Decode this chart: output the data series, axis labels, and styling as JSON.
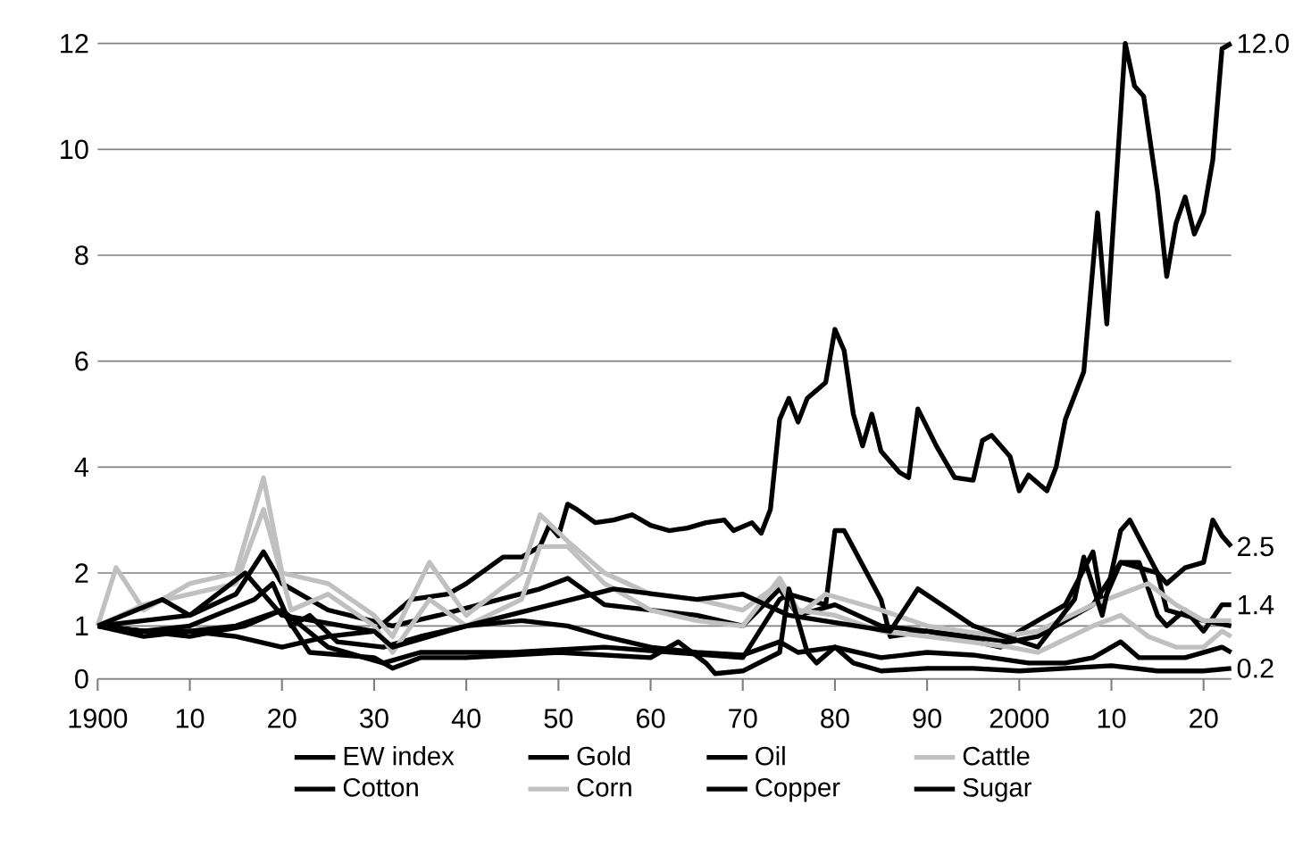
{
  "chart_data": {
    "type": "line",
    "xlim": [
      1900,
      2023
    ],
    "ylim": [
      0,
      12
    ],
    "xticks": [
      1900,
      {
        "value": 1910,
        "label": "10"
      },
      {
        "value": 1920,
        "label": "20"
      },
      {
        "value": 1930,
        "label": "30"
      },
      {
        "value": 1940,
        "label": "40"
      },
      {
        "value": 1950,
        "label": "50"
      },
      {
        "value": 1960,
        "label": "60"
      },
      {
        "value": 1970,
        "label": "70"
      },
      {
        "value": 1980,
        "label": "80"
      },
      {
        "value": 1990,
        "label": "90"
      },
      2000,
      {
        "value": 2010,
        "label": "10"
      },
      {
        "value": 2020,
        "label": "20"
      }
    ],
    "yticks": [
      0,
      1,
      2,
      4,
      6,
      8,
      10,
      12
    ],
    "grid": "y",
    "legend": "bottom",
    "marker": "none",
    "line_style": "solid",
    "series": [
      {
        "name": "EW index",
        "color": "#000000",
        "x": [
          1900,
          1905,
          1910,
          1915,
          1918,
          1920,
          1925,
          1932,
          1937,
          1948,
          1951,
          1955,
          1965,
          1970,
          1974,
          1976,
          1980,
          1985,
          1990,
          1999,
          2002,
          2008,
          2011,
          2015,
          2016,
          2020,
          2023
        ],
        "values": [
          1,
          1.1,
          1.2,
          1.6,
          2.4,
          1.8,
          1.3,
          1.0,
          1.2,
          1.7,
          1.9,
          1.4,
          1.2,
          1.0,
          1.7,
          1.2,
          1.4,
          1.0,
          0.9,
          0.7,
          0.8,
          1.4,
          2.2,
          2.0,
          1.3,
          1.1,
          1.0
        ]
      },
      {
        "name": "Gold",
        "color": "#000000",
        "x": [
          1900,
          1905,
          1910,
          1915,
          1920,
          1925,
          1930,
          1934,
          1938,
          1940,
          1944,
          1946,
          1948,
          1949,
          1950,
          1951,
          1952,
          1954,
          1956,
          1958,
          1960,
          1962,
          1964,
          1966,
          1968,
          1969,
          1971,
          1972,
          1973,
          1974,
          1975,
          1976,
          1977,
          1979,
          1980,
          1981,
          1982,
          1983,
          1984,
          1985,
          1987,
          1988,
          1989,
          1991,
          1993,
          1995,
          1996,
          1997,
          1999,
          2000,
          2001,
          2003,
          2004,
          2005,
          2007,
          2008.5,
          2009.5,
          2011.5,
          2012.5,
          2013.5,
          2015,
          2016,
          2017,
          2018,
          2019,
          2020,
          2021,
          2022,
          2023
        ],
        "values": [
          1,
          0.9,
          0.9,
          0.8,
          0.6,
          0.8,
          0.9,
          1.5,
          1.6,
          1.8,
          2.3,
          2.3,
          2.5,
          2.9,
          2.7,
          3.3,
          3.2,
          2.95,
          3.0,
          3.1,
          2.9,
          2.8,
          2.85,
          2.95,
          3.0,
          2.8,
          2.95,
          2.75,
          3.2,
          4.9,
          5.3,
          4.85,
          5.3,
          5.6,
          6.6,
          6.2,
          5.0,
          4.4,
          5.0,
          4.3,
          3.9,
          3.8,
          5.1,
          4.4,
          3.8,
          3.75,
          4.5,
          4.6,
          4.2,
          3.55,
          3.85,
          3.55,
          4.0,
          4.9,
          5.8,
          8.8,
          6.7,
          12.0,
          11.2,
          11.0,
          9.2,
          7.6,
          8.6,
          9.1,
          8.4,
          8.8,
          9.8,
          11.9,
          12.0
        ],
        "value_labels": [
          null,
          null,
          null,
          null,
          null,
          null,
          null,
          null,
          null,
          null,
          null,
          null,
          null,
          null,
          null,
          null,
          null,
          null,
          null,
          null,
          null,
          null,
          null,
          null,
          null,
          null,
          null,
          null,
          null,
          null,
          null,
          null,
          null,
          null,
          null,
          null,
          null,
          null,
          null,
          null,
          null,
          null,
          null,
          null,
          null,
          null,
          null,
          null,
          null,
          null,
          null,
          null,
          null,
          null,
          null,
          null,
          null,
          null,
          null,
          null,
          null,
          null,
          null,
          null,
          null,
          null,
          null,
          null,
          "12.0"
        ]
      },
      {
        "name": "Oil",
        "color": "#000000",
        "x": [
          1900,
          1905,
          1915,
          1920,
          1925,
          1931,
          1935,
          1945,
          1955,
          1970,
          1974,
          1975,
          1979,
          1980,
          1981,
          1985,
          1986,
          1990,
          1998,
          2000,
          2005,
          2008,
          2009,
          2011,
          2013,
          2015,
          2016,
          2018,
          2020,
          2022,
          2023
        ],
        "values": [
          1.0,
          0.8,
          1.0,
          1.3,
          0.6,
          0.3,
          0.5,
          0.5,
          0.6,
          0.4,
          1.5,
          1.6,
          1.4,
          2.8,
          2.8,
          1.5,
          0.8,
          0.9,
          0.6,
          0.9,
          1.4,
          2.4,
          1.4,
          2.2,
          2.2,
          1.2,
          1.0,
          1.3,
          0.9,
          1.4,
          1.4
        ],
        "value_labels": [
          null,
          null,
          null,
          null,
          null,
          null,
          null,
          null,
          null,
          null,
          null,
          null,
          null,
          null,
          null,
          null,
          null,
          null,
          null,
          null,
          null,
          null,
          null,
          null,
          null,
          null,
          null,
          null,
          null,
          null,
          "1.4"
        ]
      },
      {
        "name": "Cattle",
        "color": "#c0c0c0",
        "x": [
          1900,
          1902,
          1905,
          1910,
          1915,
          1918,
          1920,
          1925,
          1930,
          1932,
          1936,
          1940,
          1946,
          1948,
          1951,
          1955,
          1960,
          1965,
          1970,
          1974,
          1976,
          1979,
          1985,
          1990,
          1998,
          2002,
          2008,
          2014,
          2017,
          2020,
          2023
        ],
        "values": [
          1.0,
          2.1,
          1.3,
          1.8,
          2.0,
          3.8,
          2.0,
          1.8,
          1.2,
          0.8,
          2.2,
          1.2,
          2.0,
          3.1,
          2.6,
          2.0,
          1.6,
          1.5,
          1.3,
          1.8,
          1.2,
          1.6,
          1.3,
          1.0,
          0.8,
          0.9,
          1.4,
          1.8,
          1.4,
          1.1,
          1.1
        ]
      },
      {
        "name": "Cotton",
        "color": "#000000",
        "x": [
          1900,
          1905,
          1910,
          1917,
          1919,
          1921,
          1923,
          1926,
          1931,
          1935,
          1940,
          1946,
          1951,
          1955,
          1960,
          1965,
          1970,
          1974,
          1976,
          1980,
          1985,
          1990,
          1995,
          2001,
          2005,
          2008,
          2011,
          2013,
          2018,
          2022,
          2023
        ],
        "values": [
          1.0,
          0.9,
          1.0,
          1.5,
          1.8,
          1.0,
          1.2,
          0.7,
          0.6,
          0.8,
          1.0,
          1.1,
          1.0,
          0.8,
          0.6,
          0.5,
          0.45,
          0.7,
          0.5,
          0.6,
          0.4,
          0.5,
          0.45,
          0.3,
          0.3,
          0.4,
          0.7,
          0.4,
          0.4,
          0.6,
          0.5
        ]
      },
      {
        "name": "Corn",
        "color": "#c0c0c0",
        "x": [
          1900,
          1905,
          1910,
          1915,
          1918,
          1921,
          1925,
          1930,
          1932,
          1936,
          1940,
          1946,
          1948,
          1951,
          1955,
          1960,
          1965,
          1970,
          1974,
          1976,
          1980,
          1985,
          1990,
          1999,
          2002,
          2008,
          2011,
          2014,
          2017,
          2020,
          2022,
          2023
        ],
        "values": [
          1.0,
          1.4,
          1.6,
          1.8,
          3.2,
          1.3,
          1.6,
          1.0,
          0.5,
          1.5,
          1.0,
          1.5,
          2.5,
          2.5,
          1.8,
          1.3,
          1.1,
          1.0,
          1.9,
          1.3,
          1.2,
          0.9,
          0.8,
          0.6,
          0.5,
          1.0,
          1.2,
          0.8,
          0.6,
          0.6,
          0.9,
          0.8
        ]
      },
      {
        "name": "Copper",
        "color": "#000000",
        "x": [
          1900,
          1907,
          1910,
          1916,
          1920,
          1930,
          1932,
          1940,
          1956,
          1965,
          1970,
          1975,
          1986,
          1989,
          1995,
          2002,
          2006,
          2007,
          2009,
          2011,
          2012,
          2015,
          2016,
          2018,
          2020,
          2021,
          2022,
          2023
        ],
        "values": [
          1.0,
          1.5,
          1.2,
          2.0,
          1.2,
          0.9,
          0.6,
          1.0,
          1.7,
          1.5,
          1.6,
          1.2,
          0.9,
          1.7,
          1.0,
          0.6,
          1.5,
          2.3,
          1.2,
          2.8,
          3.0,
          2.0,
          1.8,
          2.1,
          2.2,
          3.0,
          2.7,
          2.5
        ],
        "value_labels": [
          null,
          null,
          null,
          null,
          null,
          null,
          null,
          null,
          null,
          null,
          null,
          null,
          null,
          null,
          null,
          null,
          null,
          null,
          null,
          null,
          null,
          null,
          null,
          null,
          null,
          null,
          null,
          "2.5"
        ]
      },
      {
        "name": "Sugar",
        "color": "#000000",
        "x": [
          1900,
          1905,
          1910,
          1916,
          1920,
          1923,
          1930,
          1932,
          1935,
          1940,
          1950,
          1960,
          1963,
          1966,
          1967,
          1970,
          1974,
          1975,
          1977,
          1978,
          1980,
          1982,
          1985,
          1990,
          1995,
          2000,
          2005,
          2010,
          2015,
          2020,
          2023
        ],
        "values": [
          1.0,
          0.9,
          0.8,
          1.0,
          1.3,
          0.5,
          0.4,
          0.2,
          0.4,
          0.4,
          0.5,
          0.4,
          0.7,
          0.3,
          0.1,
          0.15,
          0.5,
          1.7,
          0.5,
          0.3,
          0.6,
          0.3,
          0.15,
          0.2,
          0.2,
          0.15,
          0.2,
          0.25,
          0.15,
          0.15,
          0.2
        ],
        "value_labels": [
          null,
          null,
          null,
          null,
          null,
          null,
          null,
          null,
          null,
          null,
          null,
          null,
          null,
          null,
          null,
          null,
          null,
          null,
          null,
          null,
          null,
          null,
          null,
          null,
          null,
          null,
          null,
          null,
          null,
          null,
          "0.2"
        ]
      }
    ]
  }
}
